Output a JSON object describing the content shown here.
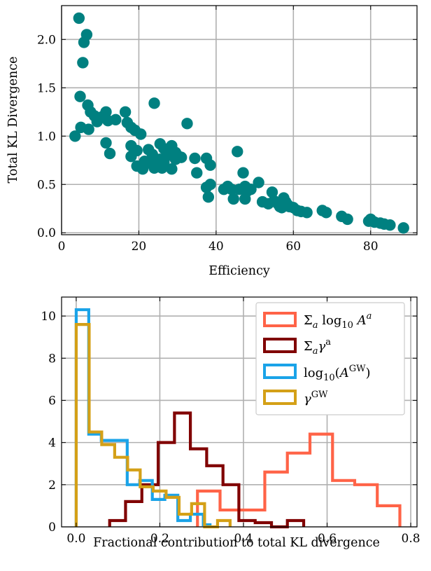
{
  "chart_data": [
    {
      "type": "scatter",
      "xlabel": "Efficiency",
      "ylabel": "Total KL Divergence",
      "xlim": [
        0,
        92
      ],
      "ylim": [
        -0.02,
        2.35
      ],
      "xticks": [
        0,
        20,
        40,
        60,
        80
      ],
      "xtick_labels": [
        "0",
        "20",
        "40",
        "60",
        "80"
      ],
      "yticks": [
        0.0,
        0.5,
        1.0,
        1.5,
        2.0
      ],
      "ytick_labels": [
        "0.0",
        "0.5",
        "1.0",
        "1.5",
        "2.0"
      ],
      "grid": true,
      "color": "#008080",
      "points": [
        [
          4.5,
          2.22
        ],
        [
          6.5,
          2.05
        ],
        [
          5.8,
          1.97
        ],
        [
          5.5,
          1.76
        ],
        [
          4.8,
          1.41
        ],
        [
          6.8,
          1.32
        ],
        [
          7.5,
          1.25
        ],
        [
          5.0,
          1.09
        ],
        [
          3.5,
          1.0
        ],
        [
          7.0,
          1.07
        ],
        [
          8.5,
          1.21
        ],
        [
          9.2,
          1.15
        ],
        [
          10.5,
          1.2
        ],
        [
          11.5,
          1.25
        ],
        [
          12.0,
          1.16
        ],
        [
          14.0,
          1.17
        ],
        [
          16.5,
          1.25
        ],
        [
          17.0,
          1.14
        ],
        [
          18.0,
          1.09
        ],
        [
          19.0,
          1.06
        ],
        [
          20.5,
          1.02
        ],
        [
          11.5,
          0.93
        ],
        [
          12.5,
          0.82
        ],
        [
          18.0,
          0.9
        ],
        [
          19.5,
          0.85
        ],
        [
          22.5,
          0.86
        ],
        [
          24.0,
          1.34
        ],
        [
          25.5,
          0.92
        ],
        [
          26.5,
          0.87
        ],
        [
          28.5,
          0.9
        ],
        [
          29.5,
          0.83
        ],
        [
          31.0,
          0.78
        ],
        [
          32.5,
          1.13
        ],
        [
          34.5,
          0.77
        ],
        [
          37.5,
          0.77
        ],
        [
          38.5,
          0.7
        ],
        [
          35.0,
          0.62
        ],
        [
          18.0,
          0.79
        ],
        [
          19.5,
          0.69
        ],
        [
          21.0,
          0.66
        ],
        [
          23.0,
          0.72
        ],
        [
          24.5,
          0.7
        ],
        [
          25.5,
          0.76
        ],
        [
          26.0,
          0.67
        ],
        [
          27.5,
          0.8
        ],
        [
          28.5,
          0.66
        ],
        [
          29.5,
          0.76
        ],
        [
          30.0,
          0.8
        ],
        [
          21.5,
          0.74
        ],
        [
          23.5,
          0.81
        ],
        [
          26.5,
          0.73
        ],
        [
          24.0,
          0.67
        ],
        [
          37.5,
          0.47
        ],
        [
          38.0,
          0.37
        ],
        [
          38.5,
          0.5
        ],
        [
          42.0,
          0.45
        ],
        [
          43.0,
          0.48
        ],
        [
          44.0,
          0.45
        ],
        [
          45.5,
          0.84
        ],
        [
          47.0,
          0.62
        ],
        [
          44.5,
          0.35
        ],
        [
          46.0,
          0.45
        ],
        [
          47.5,
          0.48
        ],
        [
          48.0,
          0.43
        ],
        [
          47.5,
          0.35
        ],
        [
          49.0,
          0.45
        ],
        [
          51.0,
          0.52
        ],
        [
          52.0,
          0.32
        ],
        [
          53.5,
          0.3
        ],
        [
          54.5,
          0.42
        ],
        [
          55.0,
          0.33
        ],
        [
          56.0,
          0.3
        ],
        [
          56.5,
          0.27
        ],
        [
          57.0,
          0.26
        ],
        [
          57.5,
          0.36
        ],
        [
          58.0,
          0.32
        ],
        [
          58.5,
          0.29
        ],
        [
          59.0,
          0.27
        ],
        [
          60.0,
          0.26
        ],
        [
          61.0,
          0.23
        ],
        [
          62.0,
          0.22
        ],
        [
          63.5,
          0.21
        ],
        [
          67.5,
          0.23
        ],
        [
          68.5,
          0.21
        ],
        [
          72.5,
          0.17
        ],
        [
          74.0,
          0.14
        ],
        [
          79.5,
          0.12
        ],
        [
          80.0,
          0.14
        ],
        [
          81.0,
          0.11
        ],
        [
          82.5,
          0.1
        ],
        [
          83.5,
          0.09
        ],
        [
          85.0,
          0.08
        ],
        [
          88.5,
          0.05
        ]
      ]
    },
    {
      "type": "histogram",
      "xlabel": "Fractional contribution to total KL divergence",
      "ylabel": "",
      "xlim": [
        -0.035,
        0.815
      ],
      "ylim": [
        0,
        10.9
      ],
      "xticks": [
        0.0,
        0.2,
        0.4,
        0.6,
        0.8
      ],
      "xtick_labels": [
        "0.0",
        "0.2",
        "0.4",
        "0.6",
        "0.8"
      ],
      "yticks": [
        0,
        2,
        4,
        6,
        8,
        10
      ],
      "ytick_labels": [
        "0",
        "2",
        "4",
        "6",
        "8",
        "10"
      ],
      "grid": true,
      "legend_position": "top-right",
      "series": [
        {
          "name": "Σₐ log₁₀ Aᵃ",
          "color": "#ff6347",
          "edges": [
            0.29,
            0.344,
            0.397,
            0.451,
            0.505,
            0.559,
            0.613,
            0.666,
            0.72,
            0.774
          ],
          "counts": [
            1.7,
            0.8,
            0.8,
            2.6,
            3.5,
            4.4,
            2.2,
            2.0,
            1.0
          ]
        },
        {
          "name": "Σₐ γᵃ",
          "color": "#800000",
          "edges": [
            0.08,
            0.118,
            0.157,
            0.196,
            0.235,
            0.273,
            0.312,
            0.351,
            0.389,
            0.428,
            0.467,
            0.505,
            0.544
          ],
          "counts": [
            0.3,
            1.2,
            2.0,
            4.0,
            5.4,
            3.7,
            2.9,
            2.0,
            0.3,
            0.2,
            0.0,
            0.3
          ]
        },
        {
          "name": "log₁₀(Aᴳᵂ)",
          "color": "#1aa3e8",
          "edges": [
            0.0,
            0.03,
            0.06,
            0.091,
            0.122,
            0.152,
            0.182,
            0.212,
            0.243,
            0.273,
            0.304,
            0.32
          ],
          "counts": [
            10.3,
            4.4,
            4.1,
            4.1,
            2.0,
            2.2,
            1.3,
            1.5,
            0.3,
            0.6,
            0.1
          ]
        },
        {
          "name": "γᴳᵂ",
          "color": "#d4a017",
          "edges": [
            0.0,
            0.031,
            0.061,
            0.092,
            0.123,
            0.153,
            0.184,
            0.215,
            0.246,
            0.276,
            0.307,
            0.338,
            0.368
          ],
          "counts": [
            9.6,
            4.5,
            3.9,
            3.3,
            2.7,
            1.9,
            1.7,
            1.4,
            0.6,
            1.1,
            0.0,
            0.3
          ]
        }
      ]
    }
  ]
}
